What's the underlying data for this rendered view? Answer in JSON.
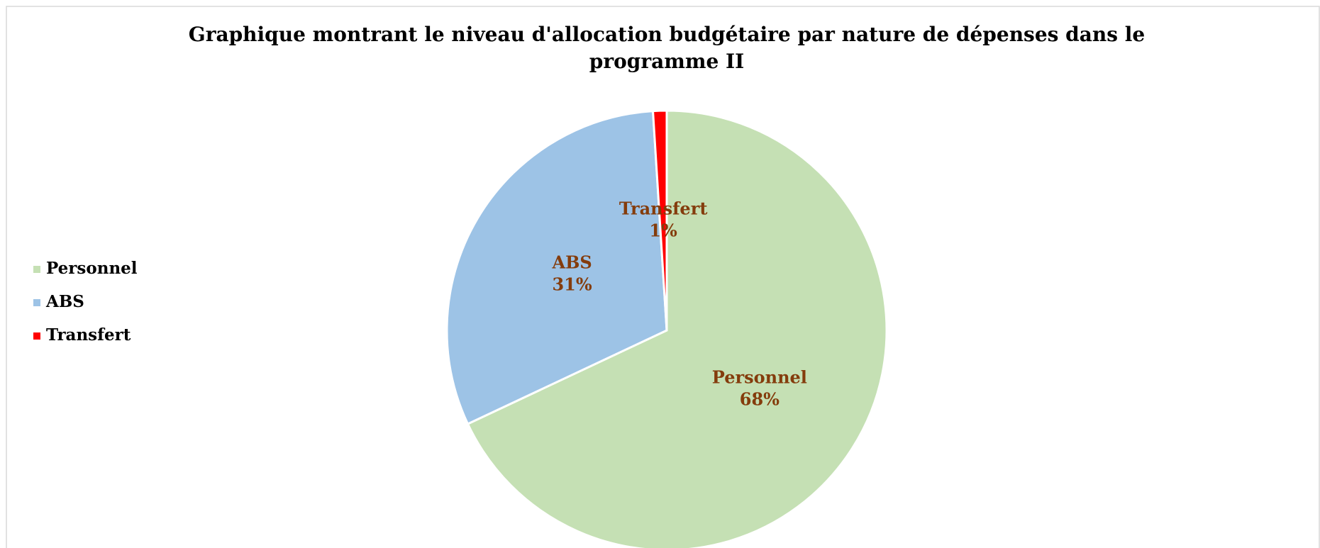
{
  "chart_data": {
    "type": "pie",
    "title": "Graphique montrant le niveau d'allocation budgétaire par nature de dépenses dans le programme II",
    "categories": [
      "Personnel",
      "ABS",
      "Transfert"
    ],
    "values": [
      68,
      31,
      1
    ],
    "value_labels": [
      "68%",
      "31%",
      "1%"
    ],
    "colors": [
      "#c5e0b4",
      "#9dc3e6",
      "#ff0000"
    ],
    "legend": "left"
  }
}
